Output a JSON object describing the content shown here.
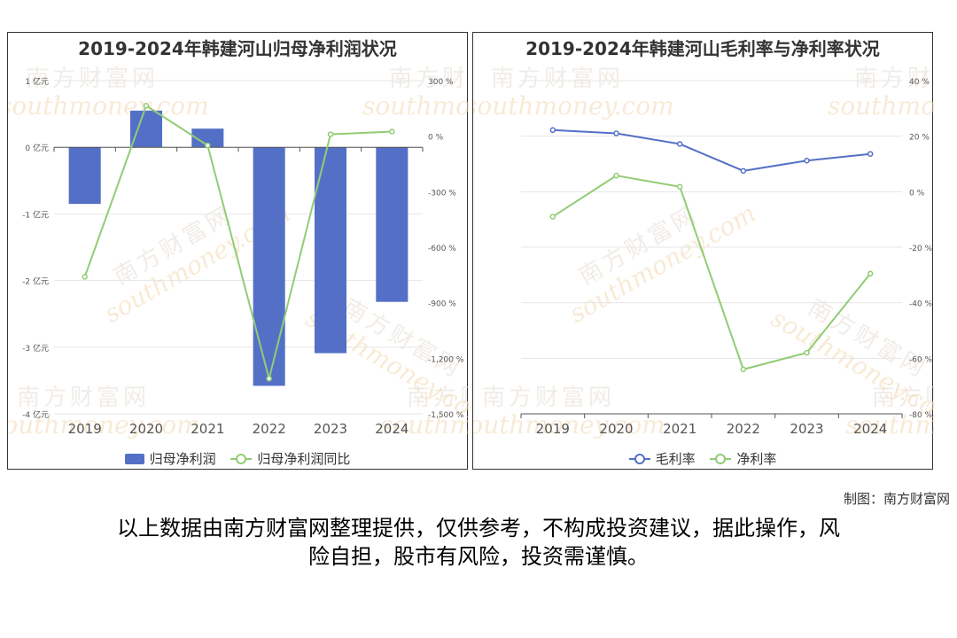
{
  "credit": "制图：南方财富网",
  "disclaimer_line1": "以上数据由南方财富网整理提供，仅供参考，不构成投资建议，据此操作，风",
  "disclaimer_line2": "险自担，股市有风险，投资需谨慎。",
  "watermark": {
    "cn": "南方财富网",
    "en": "southmoney.com"
  },
  "chart_data": [
    {
      "type": "bar",
      "title": "2019-2024年韩建河山归母净利润状况",
      "categories": [
        "2019",
        "2020",
        "2021",
        "2022",
        "2023",
        "2024"
      ],
      "y_left": {
        "ylim": [
          -4,
          1
        ],
        "ticks": [
          -4,
          -3,
          -2,
          -1,
          0,
          1
        ],
        "tick_labels": [
          "-4 亿元",
          "-3 亿元",
          "-2 亿元",
          "-1 亿元",
          "0 亿元",
          "1 亿元"
        ]
      },
      "y_right": {
        "ylim": [
          -1500,
          300
        ],
        "ticks": [
          -1500,
          -1200,
          -900,
          -600,
          -300,
          0,
          300
        ],
        "tick_labels": [
          "-1,500 %",
          "-1,200 %",
          "-900 %",
          "-600 %",
          "-300 %",
          "0 %",
          "300 %"
        ]
      },
      "series": [
        {
          "name": "归母净利润",
          "type": "bar",
          "axis": "left",
          "color": "#5470c6",
          "values": [
            -0.85,
            0.55,
            0.28,
            -3.58,
            -3.09,
            -2.32
          ]
        },
        {
          "name": "归母净利润同比",
          "type": "line",
          "axis": "right",
          "color": "#91cc75",
          "values": [
            -760,
            165,
            -50,
            -1310,
            10,
            25
          ]
        }
      ],
      "legend": "bottom"
    },
    {
      "type": "line",
      "title": "2019-2024年韩建河山毛利率与净利率状况",
      "categories": [
        "2019",
        "2020",
        "2021",
        "2022",
        "2023",
        "2024"
      ],
      "y_right": {
        "ylim": [
          -80,
          40
        ],
        "ticks": [
          -80,
          -60,
          -40,
          -20,
          0,
          20,
          40
        ],
        "tick_labels": [
          "-80 %",
          "-60 %",
          "-40 %",
          "-20 %",
          "0 %",
          "20 %",
          "40 %"
        ]
      },
      "series": [
        {
          "name": "毛利率",
          "color": "#5470c6",
          "values": [
            22.2,
            21.0,
            17.2,
            7.5,
            11.2,
            13.6
          ]
        },
        {
          "name": "净利率",
          "color": "#91cc75",
          "values": [
            -9.0,
            5.8,
            1.8,
            -64.0,
            -58.0,
            -29.5
          ]
        }
      ],
      "legend": "bottom"
    }
  ]
}
